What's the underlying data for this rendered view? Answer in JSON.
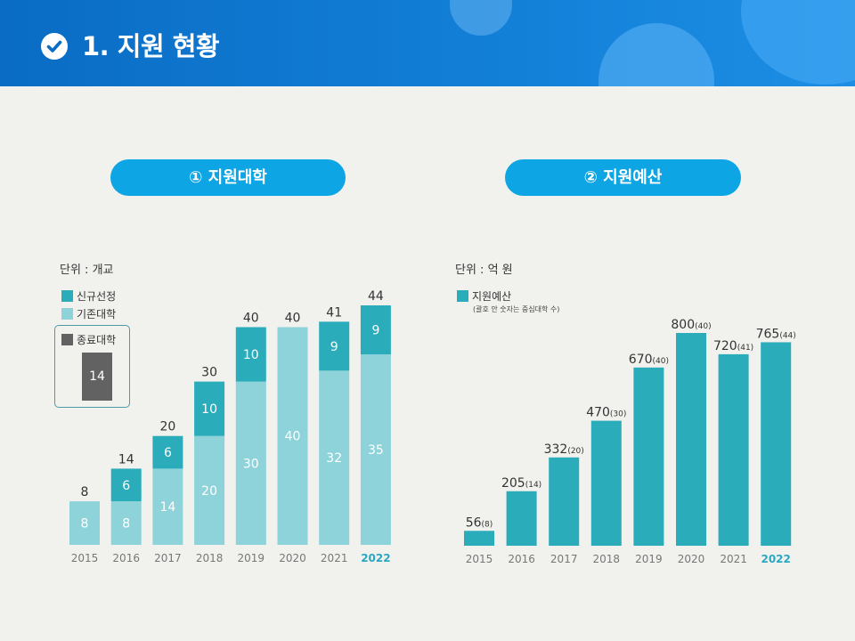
{
  "header": {
    "title": "1. 지원 현황",
    "icon": "check-circle-icon"
  },
  "colors": {
    "header": "#0a6cc4",
    "pill": "#0ea5e4",
    "new": "#2aacbb",
    "existing": "#8fd3da",
    "closed": "#626262",
    "budget": "#2aacbb",
    "highlight_year": "#2aa7c3",
    "background": "#f1f2ee"
  },
  "charts": {
    "left": {
      "heading": "① 지원대학",
      "unit": "단위 : 개교",
      "legend": {
        "new": "신규선정",
        "existing": "기존대학",
        "closed": "종료대학"
      },
      "closed_value": "14"
    },
    "right": {
      "heading": "② 지원예산",
      "unit": "단위 : 억 원",
      "legend": {
        "budget": "지원예산",
        "note": "(괄호 안 숫자는 중심대학 수)"
      }
    }
  },
  "chart_data": [
    {
      "type": "bar",
      "stacked": true,
      "categories": [
        "2015",
        "2016",
        "2017",
        "2018",
        "2019",
        "2020",
        "2021",
        "2022"
      ],
      "series": [
        {
          "name": "기존대학",
          "values": [
            8,
            8,
            14,
            20,
            30,
            40,
            32,
            35
          ]
        },
        {
          "name": "신규선정",
          "values": [
            0,
            6,
            6,
            10,
            10,
            0,
            9,
            9
          ]
        }
      ],
      "totals": [
        8,
        14,
        20,
        30,
        40,
        40,
        41,
        44
      ],
      "closed": {
        "name": "종료대학",
        "value": 14
      },
      "ylim": [
        0,
        44
      ],
      "grid": false,
      "highlight_category": "2022"
    },
    {
      "type": "bar",
      "categories": [
        "2015",
        "2016",
        "2017",
        "2018",
        "2019",
        "2020",
        "2021",
        "2022"
      ],
      "series": [
        {
          "name": "지원예산",
          "values": [
            56,
            205,
            332,
            470,
            670,
            800,
            720,
            765
          ]
        }
      ],
      "annotations": [
        "(8)",
        "(14)",
        "(20)",
        "(30)",
        "(40)",
        "(40)",
        "(41)",
        "(44)"
      ],
      "ylim": [
        0,
        800
      ],
      "grid": false,
      "highlight_category": "2022"
    }
  ]
}
